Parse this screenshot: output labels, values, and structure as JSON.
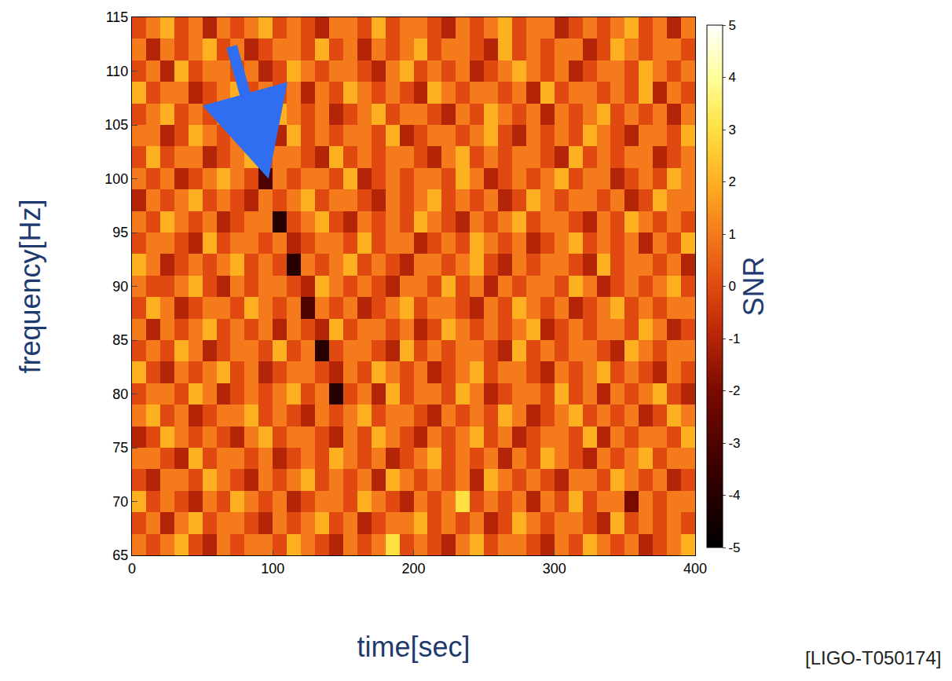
{
  "chart_data": {
    "type": "heatmap",
    "x_label": "time[sec]",
    "y_label": "frequency[Hz]",
    "annotations": [
      "[LIGO-T050174]"
    ],
    "x": [
      5,
      15,
      25,
      35,
      45,
      55,
      65,
      75,
      85,
      95,
      105,
      115,
      125,
      135,
      145,
      155,
      165,
      175,
      185,
      195,
      205,
      215,
      225,
      235,
      245,
      255,
      265,
      275,
      285,
      295,
      305,
      315,
      325,
      335,
      345,
      355,
      365,
      375,
      385,
      395
    ],
    "y": [
      66,
      68,
      70,
      72,
      74,
      76,
      78,
      80,
      82,
      84,
      86,
      88,
      90,
      92,
      94,
      96,
      98,
      100,
      102,
      104,
      106,
      108,
      110,
      112,
      114
    ],
    "cells": [
      [
        1,
        0,
        1,
        2,
        0,
        -1,
        1,
        0,
        1,
        1,
        0,
        2,
        1,
        0,
        -1,
        1,
        0,
        1,
        3,
        0,
        1,
        0,
        -1,
        1,
        2,
        0,
        1,
        1,
        0,
        -1,
        1,
        0,
        2,
        1,
        0,
        1,
        -1,
        0,
        1,
        2
      ],
      [
        0,
        1,
        -1,
        1,
        2,
        0,
        1,
        1,
        0,
        -1,
        1,
        0,
        1,
        2,
        0,
        1,
        -1,
        0,
        1,
        1,
        2,
        0,
        1,
        0,
        1,
        -1,
        0,
        2,
        1,
        0,
        1,
        1,
        0,
        -1,
        2,
        0,
        1,
        0,
        1,
        0
      ],
      [
        2,
        0,
        1,
        0,
        -1,
        1,
        0,
        2,
        1,
        0,
        1,
        -1,
        0,
        1,
        1,
        0,
        2,
        1,
        0,
        -1,
        1,
        0,
        1,
        3,
        0,
        1,
        0,
        1,
        -1,
        1,
        0,
        2,
        0,
        1,
        1,
        -2,
        1,
        0,
        1,
        1
      ],
      [
        0,
        -1,
        1,
        1,
        0,
        2,
        1,
        0,
        -1,
        1,
        0,
        1,
        2,
        0,
        1,
        0,
        1,
        -1,
        2,
        1,
        0,
        1,
        0,
        1,
        -1,
        2,
        1,
        0,
        1,
        0,
        -1,
        1,
        1,
        0,
        2,
        1,
        0,
        1,
        -1,
        0
      ],
      [
        1,
        1,
        0,
        -1,
        2,
        0,
        1,
        1,
        0,
        1,
        -1,
        0,
        1,
        0,
        2,
        1,
        0,
        1,
        -1,
        0,
        1,
        2,
        0,
        1,
        0,
        1,
        -1,
        1,
        0,
        2,
        1,
        0,
        -1,
        1,
        0,
        1,
        2,
        0,
        1,
        1
      ],
      [
        -1,
        0,
        2,
        1,
        0,
        1,
        0,
        -1,
        1,
        2,
        0,
        1,
        1,
        0,
        -1,
        1,
        0,
        2,
        1,
        0,
        -1,
        1,
        0,
        1,
        2,
        0,
        1,
        -1,
        0,
        1,
        1,
        0,
        2,
        -1,
        1,
        0,
        1,
        1,
        0,
        2
      ],
      [
        1,
        2,
        0,
        1,
        -1,
        0,
        1,
        1,
        2,
        0,
        1,
        0,
        -1,
        1,
        0,
        1,
        2,
        0,
        1,
        1,
        0,
        -1,
        1,
        0,
        1,
        0,
        2,
        1,
        -1,
        0,
        1,
        2,
        0,
        1,
        0,
        1,
        -1,
        0,
        2,
        1
      ],
      [
        0,
        1,
        1,
        0,
        2,
        1,
        -1,
        0,
        1,
        0,
        1,
        2,
        0,
        1,
        -4,
        0,
        1,
        -1,
        2,
        0,
        1,
        1,
        0,
        2,
        1,
        -1,
        0,
        1,
        1,
        0,
        2,
        0,
        1,
        -1,
        1,
        0,
        1,
        2,
        0,
        -1
      ],
      [
        2,
        0,
        -1,
        1,
        0,
        1,
        2,
        0,
        1,
        -1,
        0,
        1,
        1,
        0,
        -1,
        1,
        0,
        2,
        1,
        0,
        1,
        -1,
        0,
        1,
        2,
        0,
        1,
        1,
        0,
        -1,
        1,
        0,
        1,
        2,
        0,
        1,
        0,
        -1,
        1,
        0
      ],
      [
        0,
        1,
        0,
        2,
        1,
        -1,
        0,
        1,
        1,
        0,
        2,
        0,
        1,
        -4,
        0,
        1,
        1,
        0,
        -1,
        2,
        0,
        1,
        0,
        1,
        1,
        0,
        -1,
        2,
        0,
        1,
        0,
        1,
        1,
        0,
        -1,
        2,
        1,
        0,
        1,
        1
      ],
      [
        1,
        -1,
        1,
        0,
        1,
        2,
        0,
        1,
        0,
        1,
        -1,
        1,
        0,
        -1,
        2,
        0,
        1,
        1,
        0,
        1,
        -1,
        0,
        2,
        1,
        0,
        1,
        0,
        1,
        2,
        -1,
        0,
        1,
        0,
        1,
        1,
        0,
        2,
        1,
        -1,
        0
      ],
      [
        0,
        2,
        1,
        -1,
        0,
        1,
        1,
        0,
        2,
        1,
        0,
        1,
        -3,
        1,
        0,
        1,
        -1,
        0,
        1,
        2,
        0,
        1,
        1,
        0,
        -1,
        1,
        0,
        2,
        1,
        0,
        1,
        -1,
        0,
        1,
        2,
        0,
        1,
        0,
        1,
        1
      ],
      [
        1,
        0,
        0,
        1,
        2,
        0,
        -1,
        1,
        0,
        1,
        1,
        0,
        -1,
        2,
        1,
        0,
        1,
        0,
        -1,
        1,
        1,
        0,
        2,
        0,
        1,
        -1,
        1,
        0,
        1,
        1,
        0,
        2,
        1,
        -1,
        0,
        1,
        0,
        1,
        2,
        0
      ],
      [
        2,
        1,
        -1,
        0,
        1,
        0,
        1,
        2,
        0,
        1,
        0,
        -4,
        1,
        0,
        1,
        2,
        0,
        1,
        0,
        -1,
        1,
        1,
        0,
        1,
        2,
        0,
        -1,
        1,
        0,
        1,
        1,
        0,
        -1,
        2,
        0,
        1,
        1,
        0,
        1,
        -1
      ],
      [
        0,
        1,
        1,
        0,
        -1,
        2,
        0,
        1,
        1,
        0,
        1,
        -1,
        0,
        1,
        1,
        0,
        2,
        0,
        1,
        1,
        -1,
        0,
        1,
        0,
        2,
        1,
        0,
        1,
        -1,
        0,
        1,
        2,
        0,
        1,
        0,
        1,
        -1,
        1,
        0,
        2
      ],
      [
        1,
        0,
        2,
        1,
        0,
        1,
        -1,
        0,
        1,
        1,
        -4,
        0,
        1,
        2,
        0,
        -1,
        1,
        0,
        1,
        0,
        2,
        1,
        0,
        -1,
        1,
        0,
        1,
        2,
        0,
        1,
        1,
        0,
        -1,
        1,
        0,
        2,
        1,
        0,
        1,
        0
      ],
      [
        -1,
        1,
        0,
        1,
        2,
        0,
        1,
        0,
        -1,
        1,
        0,
        1,
        2,
        0,
        1,
        1,
        0,
        -1,
        1,
        0,
        1,
        2,
        0,
        1,
        0,
        1,
        -1,
        0,
        2,
        1,
        0,
        1,
        1,
        0,
        1,
        -1,
        0,
        2,
        1,
        1
      ],
      [
        1,
        0,
        1,
        -1,
        0,
        1,
        2,
        1,
        0,
        -3,
        1,
        0,
        1,
        1,
        0,
        2,
        -1,
        0,
        1,
        0,
        1,
        1,
        0,
        2,
        1,
        -1,
        0,
        1,
        0,
        1,
        2,
        0,
        1,
        1,
        -1,
        0,
        1,
        0,
        2,
        1
      ],
      [
        0,
        2,
        0,
        1,
        1,
        -1,
        0,
        1,
        2,
        0,
        1,
        1,
        0,
        -1,
        2,
        0,
        1,
        0,
        1,
        1,
        0,
        -1,
        1,
        2,
        0,
        1,
        0,
        1,
        1,
        0,
        -1,
        2,
        0,
        1,
        0,
        1,
        1,
        -1,
        0,
        1
      ],
      [
        1,
        1,
        -1,
        0,
        2,
        1,
        0,
        1,
        0,
        1,
        -1,
        2,
        0,
        1,
        0,
        1,
        1,
        0,
        2,
        -1,
        0,
        1,
        1,
        0,
        1,
        2,
        0,
        -1,
        1,
        0,
        1,
        0,
        2,
        1,
        0,
        -1,
        1,
        1,
        0,
        2
      ],
      [
        0,
        1,
        2,
        0,
        1,
        0,
        1,
        -1,
        1,
        0,
        2,
        1,
        0,
        1,
        -1,
        0,
        1,
        2,
        0,
        1,
        1,
        0,
        -1,
        1,
        0,
        2,
        1,
        0,
        1,
        -1,
        1,
        0,
        1,
        2,
        0,
        1,
        0,
        1,
        -1,
        1
      ],
      [
        2,
        0,
        1,
        1,
        -1,
        0,
        1,
        2,
        0,
        1,
        0,
        1,
        -1,
        1,
        0,
        2,
        1,
        0,
        1,
        0,
        -1,
        2,
        1,
        0,
        1,
        1,
        0,
        1,
        -1,
        2,
        0,
        1,
        1,
        0,
        1,
        0,
        2,
        -1,
        1,
        0
      ],
      [
        0,
        1,
        -1,
        2,
        0,
        1,
        1,
        0,
        1,
        -1,
        0,
        2,
        1,
        0,
        1,
        1,
        0,
        -1,
        1,
        2,
        0,
        1,
        0,
        1,
        -1,
        0,
        1,
        2,
        1,
        0,
        1,
        -1,
        0,
        1,
        1,
        0,
        2,
        1,
        0,
        1
      ],
      [
        1,
        -1,
        1,
        0,
        1,
        2,
        0,
        1,
        -1,
        0,
        1,
        1,
        0,
        2,
        0,
        1,
        -1,
        1,
        0,
        1,
        2,
        0,
        1,
        1,
        0,
        -1,
        2,
        0,
        1,
        0,
        1,
        1,
        -1,
        0,
        2,
        1,
        0,
        1,
        1,
        0
      ],
      [
        0,
        1,
        2,
        0,
        1,
        -1,
        1,
        0,
        1,
        2,
        0,
        1,
        0,
        -1,
        1,
        1,
        0,
        2,
        0,
        1,
        1,
        0,
        -1,
        1,
        0,
        1,
        2,
        0,
        1,
        1,
        -1,
        0,
        1,
        0,
        1,
        2,
        0,
        1,
        -1,
        1
      ]
    ],
    "xlim": [
      0,
      400
    ],
    "ylim": [
      65,
      115
    ],
    "xticks": [
      0,
      100,
      200,
      300,
      400
    ],
    "yticks": [
      65,
      70,
      75,
      80,
      85,
      90,
      95,
      100,
      105,
      110,
      115
    ],
    "colorbar": {
      "title": "SNR",
      "range": [
        -5,
        5
      ],
      "ticks": [
        -5,
        -4,
        -3,
        -2,
        -1,
        0,
        1,
        2,
        3,
        4,
        5
      ]
    },
    "grid": false
  }
}
